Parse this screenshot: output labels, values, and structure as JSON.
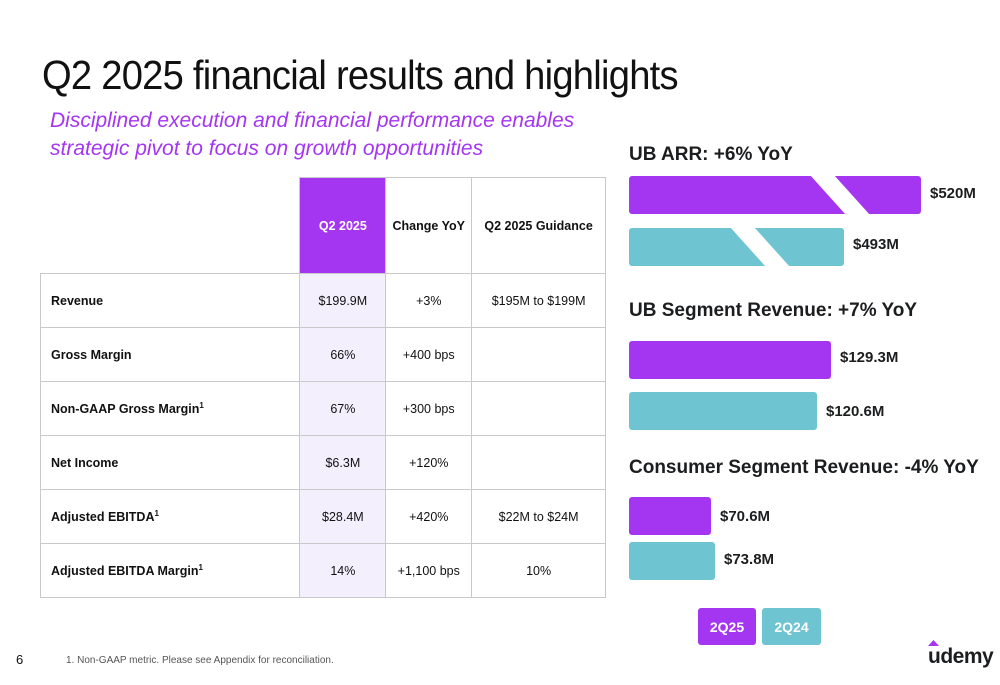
{
  "title": "Q2 2025 financial results and highlights",
  "subtitle": "Disciplined execution and financial performance enables strategic pivot to focus on growth opportunities",
  "table": {
    "headers": [
      "",
      "Q2 2025",
      "Change YoY",
      "Q2 2025 Guidance"
    ],
    "rows": [
      {
        "metric": "Revenue",
        "sup": "",
        "q2": "$199.9M",
        "yoy": "+3%",
        "guidance": "$195M to $199M"
      },
      {
        "metric": "Gross Margin",
        "sup": "",
        "q2": "66%",
        "yoy": "+400 bps",
        "guidance": ""
      },
      {
        "metric": "Non-GAAP Gross Margin",
        "sup": "1",
        "q2": "67%",
        "yoy": "+300 bps",
        "guidance": ""
      },
      {
        "metric": "Net Income",
        "sup": "",
        "q2": "$6.3M",
        "yoy": "+120%",
        "guidance": ""
      },
      {
        "metric": "Adjusted EBITDA",
        "sup": "1",
        "q2": "$28.4M",
        "yoy": "+420%",
        "guidance": "$22M to $24M"
      },
      {
        "metric": "Adjusted EBITDA Margin",
        "sup": "1",
        "q2": "14%",
        "yoy": "+1,100 bps",
        "guidance": "10%"
      }
    ]
  },
  "chart_data": [
    {
      "type": "bar",
      "title": "UB ARR: +6% YoY",
      "categories": [
        "2Q25",
        "2Q24"
      ],
      "values": [
        520,
        493
      ],
      "labels": [
        "$520M",
        "$493M"
      ],
      "unit": "$M",
      "axis_break": true
    },
    {
      "type": "bar",
      "title": "UB Segment Revenue: +7% YoY",
      "categories": [
        "2Q25",
        "2Q24"
      ],
      "values": [
        129.3,
        120.6
      ],
      "labels": [
        "$129.3M",
        "$120.6M"
      ],
      "unit": "$M"
    },
    {
      "type": "bar",
      "title": "Consumer Segment Revenue: -4% YoY",
      "categories": [
        "2Q25",
        "2Q24"
      ],
      "values": [
        70.6,
        73.8
      ],
      "labels": [
        "$70.6M",
        "$73.8M"
      ],
      "unit": "$M"
    }
  ],
  "legend": [
    {
      "label": "2Q25",
      "color": "#a435f0"
    },
    {
      "label": "2Q24",
      "color": "#6fc4d2"
    }
  ],
  "colors": {
    "accent": "#a435f0",
    "teal": "#6fc4d2",
    "highlight_cell": "#f4effd"
  },
  "footer": {
    "page_number": "6",
    "footnote": "1.  Non-GAAP metric. Please see Appendix for reconciliation.",
    "logo": "udemy"
  }
}
